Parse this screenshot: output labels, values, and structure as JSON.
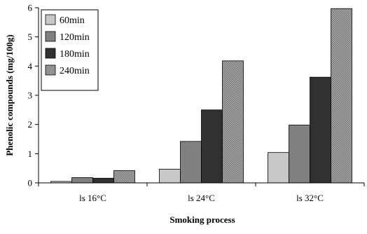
{
  "chart_data": {
    "type": "bar",
    "title": "",
    "xlabel": "Smoking process",
    "ylabel": "Phenolic compounds (mg/100g)",
    "ylim": [
      0,
      6
    ],
    "yticks": [
      "0",
      "1",
      "2",
      "3",
      "4",
      "5",
      "6"
    ],
    "grid": false,
    "legend_position": "top-left",
    "categories": [
      "ls 16°C",
      "ls 24°C",
      "ls 32°C"
    ],
    "series": [
      {
        "name": "60min",
        "color": "#c8c8c8",
        "pattern": "solid",
        "values": [
          0.05,
          0.47,
          1.04
        ]
      },
      {
        "name": "120min",
        "color": "#808080",
        "pattern": "solid",
        "values": [
          0.18,
          1.42,
          1.98
        ]
      },
      {
        "name": "180min",
        "color": "#303030",
        "pattern": "solid",
        "values": [
          0.16,
          2.5,
          3.62
        ]
      },
      {
        "name": "240min",
        "color": "#9a9a9a",
        "pattern": "dotted",
        "values": [
          0.42,
          4.18,
          5.97
        ]
      }
    ]
  }
}
